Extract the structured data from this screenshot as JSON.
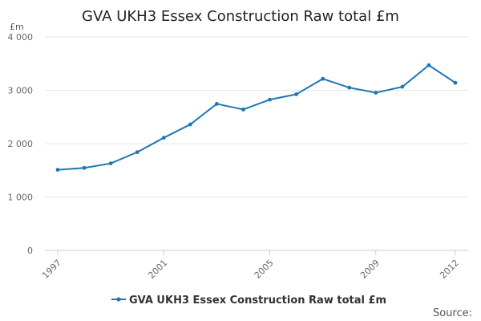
{
  "chart_data": {
    "type": "line",
    "title": "GVA UKH3 Essex Construction Raw total £m",
    "ylabel": "£m",
    "xlabel": "",
    "ylim": [
      0,
      4000
    ],
    "yticks": [
      0,
      1000,
      2000,
      3000,
      4000
    ],
    "ytick_labels": [
      "0",
      "1 000",
      "2 000",
      "3 000",
      "4 000"
    ],
    "xticks": [
      1997,
      2001,
      2005,
      2009,
      2012
    ],
    "xtick_labels": [
      "1997",
      "2001",
      "2005",
      "2009",
      "2012"
    ],
    "x": [
      1997,
      1998,
      1999,
      2000,
      2001,
      2002,
      2003,
      2004,
      2005,
      2006,
      2007,
      2008,
      2009,
      2010,
      2011,
      2012
    ],
    "series": [
      {
        "name": "GVA UKH3 Essex Construction Raw total £m",
        "color": "#1f77b4",
        "values": [
          1510,
          1545,
          1630,
          1840,
          2110,
          2360,
          2745,
          2640,
          2825,
          2925,
          3215,
          3050,
          2955,
          3065,
          3470,
          3140
        ]
      }
    ],
    "grid": true,
    "legend_position": "bottom-center",
    "source_label": "Source:"
  }
}
